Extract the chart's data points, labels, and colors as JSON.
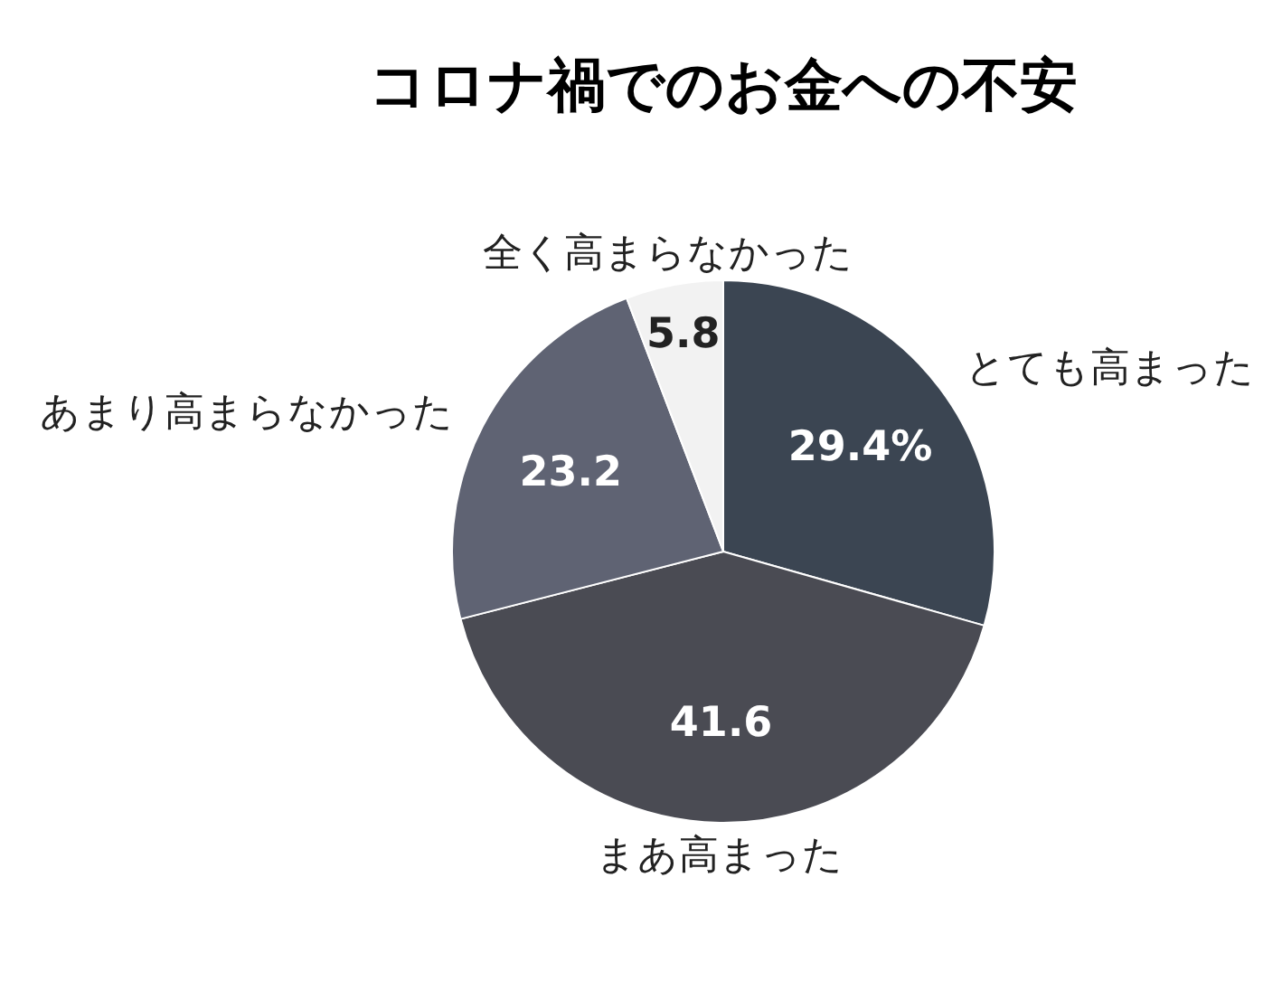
{
  "chart_data": {
    "type": "pie",
    "title": "コロナ禍でのお金への不安",
    "categories": [
      "とても高まった",
      "まあ高まった",
      "あまり高まらなかった",
      "全く高まらなかった"
    ],
    "values": [
      29.4,
      41.6,
      23.2,
      5.8
    ],
    "colors": [
      "#3b4552",
      "#4a4b53",
      "#5f6373",
      "#f2f2f2"
    ],
    "value_labels": [
      "29.4%",
      "41.6",
      "23.2",
      "5.8"
    ],
    "legend": false
  }
}
